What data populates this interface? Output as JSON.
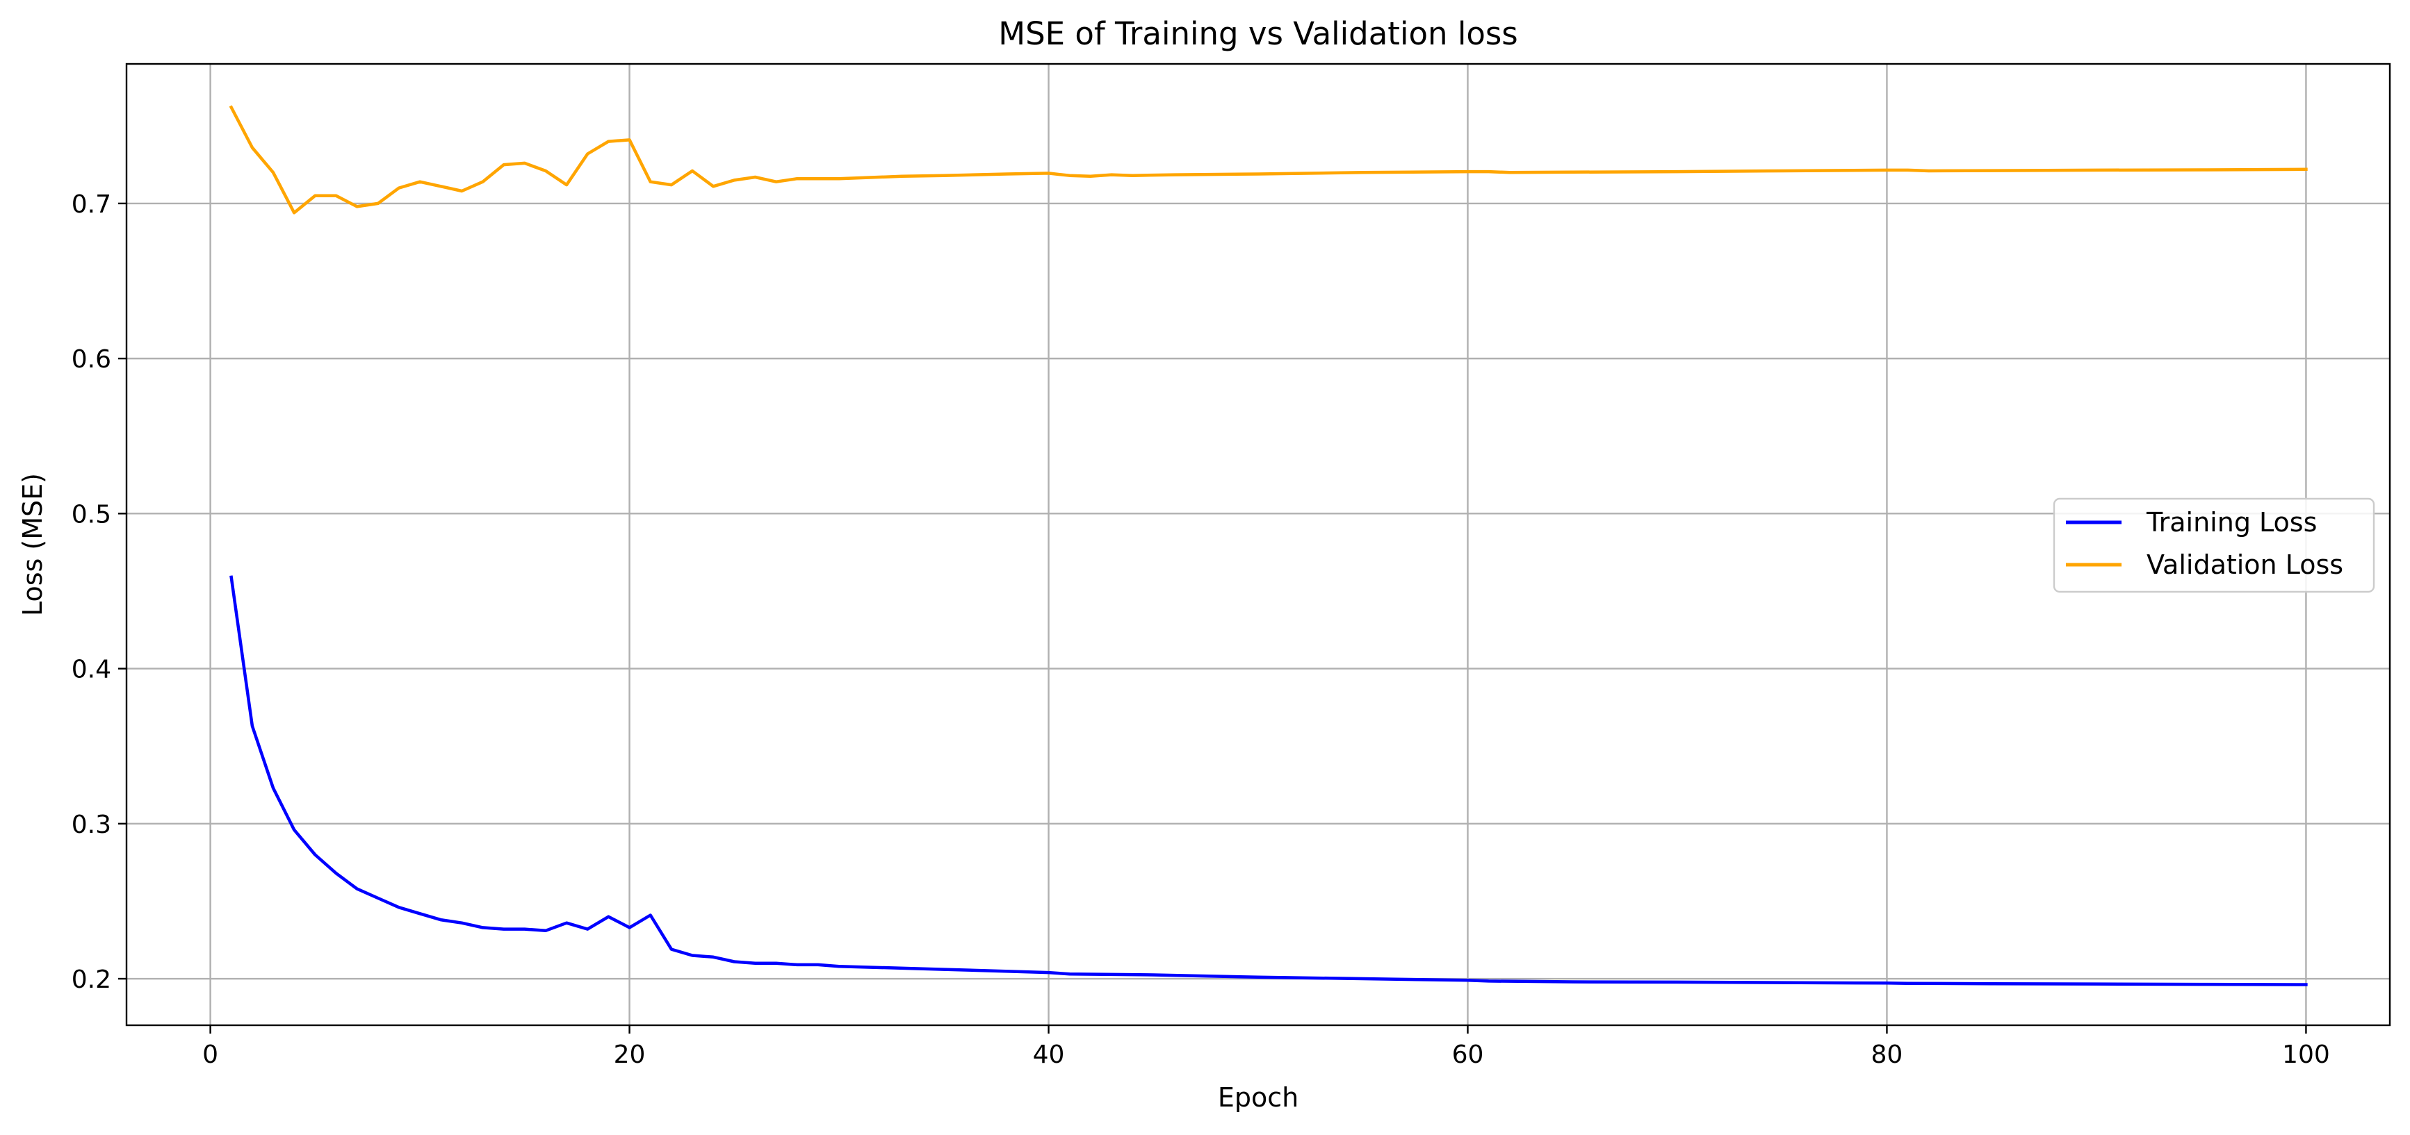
{
  "chart_data": {
    "type": "line",
    "title": "MSE of Training vs Validation loss",
    "xlabel": "Epoch",
    "ylabel": "Loss (MSE)",
    "xlim": [
      -4,
      104
    ],
    "ylim": [
      0.17,
      0.79
    ],
    "xticks": [
      0,
      20,
      40,
      60,
      80,
      100
    ],
    "yticks": [
      0.2,
      0.3,
      0.4,
      0.5,
      0.6,
      0.7
    ],
    "xtick_labels": [
      "0",
      "20",
      "40",
      "60",
      "80",
      "100"
    ],
    "ytick_labels": [
      "0.2",
      "0.3",
      "0.4",
      "0.5",
      "0.6",
      "0.7"
    ],
    "grid": true,
    "legend_position": "center-right",
    "series": [
      {
        "name": "Training Loss",
        "color": "#0000ff",
        "x": [
          1,
          2,
          3,
          4,
          5,
          6,
          7,
          8,
          9,
          10,
          11,
          12,
          13,
          14,
          15,
          16,
          17,
          18,
          19,
          20,
          21,
          22,
          23,
          24,
          25,
          26,
          27,
          28,
          29,
          30,
          35,
          40,
          41,
          45,
          50,
          55,
          60,
          61,
          65,
          70,
          75,
          80,
          81,
          85,
          90,
          95,
          100
        ],
        "values": [
          0.459,
          0.363,
          0.323,
          0.296,
          0.28,
          0.268,
          0.258,
          0.252,
          0.246,
          0.242,
          0.238,
          0.236,
          0.233,
          0.232,
          0.232,
          0.231,
          0.236,
          0.232,
          0.24,
          0.233,
          0.241,
          0.219,
          0.215,
          0.214,
          0.211,
          0.21,
          0.21,
          0.209,
          0.209,
          0.208,
          0.206,
          0.204,
          0.203,
          0.2025,
          0.201,
          0.2,
          0.199,
          0.1985,
          0.198,
          0.1978,
          0.1975,
          0.1972,
          0.197,
          0.1968,
          0.1966,
          0.1964,
          0.1962
        ]
      },
      {
        "name": "Validation Loss",
        "color": "#ffa500",
        "x": [
          1,
          2,
          3,
          4,
          5,
          6,
          7,
          8,
          9,
          10,
          11,
          12,
          13,
          14,
          15,
          16,
          17,
          18,
          19,
          20,
          21,
          22,
          23,
          24,
          25,
          26,
          27,
          28,
          29,
          30,
          33,
          35,
          38,
          40,
          41,
          42,
          43,
          44,
          46,
          50,
          55,
          60,
          61,
          62,
          65,
          70,
          75,
          80,
          81,
          82,
          85,
          90,
          95,
          100
        ],
        "values": [
          0.762,
          0.736,
          0.72,
          0.694,
          0.705,
          0.705,
          0.698,
          0.7,
          0.71,
          0.714,
          0.711,
          0.708,
          0.714,
          0.725,
          0.726,
          0.721,
          0.712,
          0.732,
          0.74,
          0.741,
          0.714,
          0.712,
          0.721,
          0.711,
          0.715,
          0.717,
          0.714,
          0.716,
          0.716,
          0.716,
          0.7175,
          0.718,
          0.719,
          0.7195,
          0.718,
          0.7175,
          0.7185,
          0.718,
          0.7185,
          0.719,
          0.72,
          0.7205,
          0.7205,
          0.72,
          0.7202,
          0.7205,
          0.721,
          0.7215,
          0.7215,
          0.721,
          0.7212,
          0.7215,
          0.7217,
          0.722
        ]
      }
    ]
  }
}
